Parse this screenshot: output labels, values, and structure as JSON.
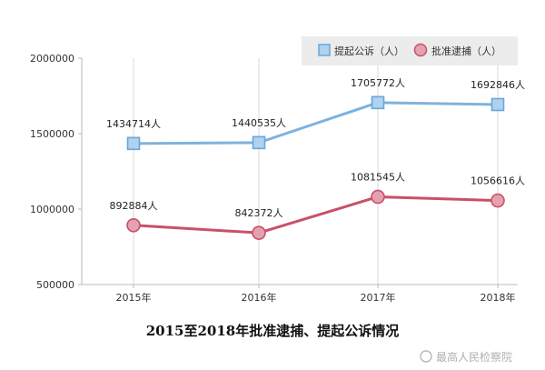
{
  "chart_data": {
    "type": "line",
    "title": "2015至2018年批准逮捕、提起公诉情况",
    "categories": [
      "2015年",
      "2016年",
      "2017年",
      "2018年"
    ],
    "ylim": [
      500000,
      2000000
    ],
    "yticks": [
      500000,
      1000000,
      1500000,
      2000000
    ],
    "ytick_labels": [
      "500000",
      "1000000",
      "1500000",
      "2000000"
    ],
    "legend_position": "top-right",
    "series": [
      {
        "name": "提起公诉（人）",
        "values": [
          1434714,
          1440535,
          1705772,
          1692846
        ],
        "labels": [
          "1434714人",
          "1440535人",
          "1705772人",
          "1692846人"
        ],
        "color": "#7fb2dd",
        "marker": "square"
      },
      {
        "name": "批准逮捕（人）",
        "values": [
          892884,
          842372,
          1081545,
          1056616
        ],
        "labels": [
          "892884人",
          "842372人",
          "1081545人",
          "1056616人"
        ],
        "color": "#c95068",
        "marker": "circle"
      }
    ]
  },
  "watermark": "最高人民检察院",
  "colors": {
    "legend_bg": "#ececec",
    "axis": "#b8b8b8",
    "grid": "#d8d8d8"
  }
}
